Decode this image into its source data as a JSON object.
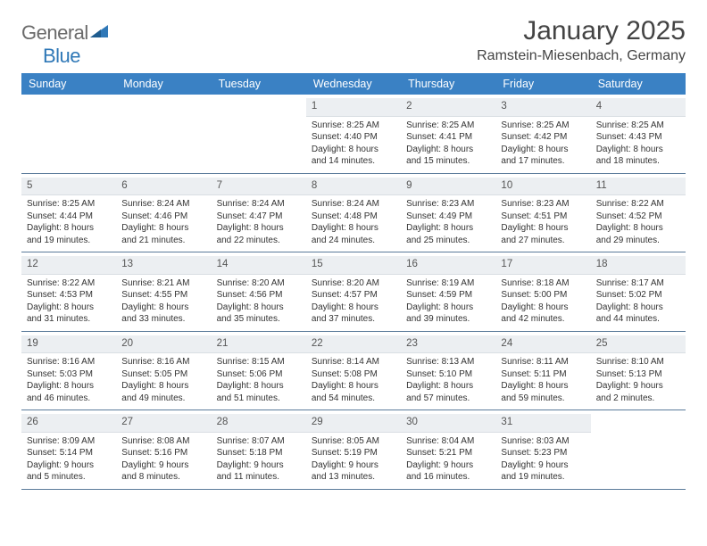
{
  "logo": {
    "word1": "General",
    "word2": "Blue"
  },
  "title": "January 2025",
  "location": "Ramstein-Miesenbach, Germany",
  "colors": {
    "header_bg": "#3a81c4",
    "header_text": "#ffffff",
    "daynum_bg": "#eceff2",
    "rule": "#5a7a9a",
    "body_text": "#333333",
    "logo_gray": "#6a6a6a",
    "logo_blue": "#2f78b7"
  },
  "day_names": [
    "Sunday",
    "Monday",
    "Tuesday",
    "Wednesday",
    "Thursday",
    "Friday",
    "Saturday"
  ],
  "weeks": [
    [
      {
        "n": "",
        "sr": "",
        "ss": "",
        "dl": ""
      },
      {
        "n": "",
        "sr": "",
        "ss": "",
        "dl": ""
      },
      {
        "n": "",
        "sr": "",
        "ss": "",
        "dl": ""
      },
      {
        "n": "1",
        "sr": "Sunrise: 8:25 AM",
        "ss": "Sunset: 4:40 PM",
        "dl": "Daylight: 8 hours and 14 minutes."
      },
      {
        "n": "2",
        "sr": "Sunrise: 8:25 AM",
        "ss": "Sunset: 4:41 PM",
        "dl": "Daylight: 8 hours and 15 minutes."
      },
      {
        "n": "3",
        "sr": "Sunrise: 8:25 AM",
        "ss": "Sunset: 4:42 PM",
        "dl": "Daylight: 8 hours and 17 minutes."
      },
      {
        "n": "4",
        "sr": "Sunrise: 8:25 AM",
        "ss": "Sunset: 4:43 PM",
        "dl": "Daylight: 8 hours and 18 minutes."
      }
    ],
    [
      {
        "n": "5",
        "sr": "Sunrise: 8:25 AM",
        "ss": "Sunset: 4:44 PM",
        "dl": "Daylight: 8 hours and 19 minutes."
      },
      {
        "n": "6",
        "sr": "Sunrise: 8:24 AM",
        "ss": "Sunset: 4:46 PM",
        "dl": "Daylight: 8 hours and 21 minutes."
      },
      {
        "n": "7",
        "sr": "Sunrise: 8:24 AM",
        "ss": "Sunset: 4:47 PM",
        "dl": "Daylight: 8 hours and 22 minutes."
      },
      {
        "n": "8",
        "sr": "Sunrise: 8:24 AM",
        "ss": "Sunset: 4:48 PM",
        "dl": "Daylight: 8 hours and 24 minutes."
      },
      {
        "n": "9",
        "sr": "Sunrise: 8:23 AM",
        "ss": "Sunset: 4:49 PM",
        "dl": "Daylight: 8 hours and 25 minutes."
      },
      {
        "n": "10",
        "sr": "Sunrise: 8:23 AM",
        "ss": "Sunset: 4:51 PM",
        "dl": "Daylight: 8 hours and 27 minutes."
      },
      {
        "n": "11",
        "sr": "Sunrise: 8:22 AM",
        "ss": "Sunset: 4:52 PM",
        "dl": "Daylight: 8 hours and 29 minutes."
      }
    ],
    [
      {
        "n": "12",
        "sr": "Sunrise: 8:22 AM",
        "ss": "Sunset: 4:53 PM",
        "dl": "Daylight: 8 hours and 31 minutes."
      },
      {
        "n": "13",
        "sr": "Sunrise: 8:21 AM",
        "ss": "Sunset: 4:55 PM",
        "dl": "Daylight: 8 hours and 33 minutes."
      },
      {
        "n": "14",
        "sr": "Sunrise: 8:20 AM",
        "ss": "Sunset: 4:56 PM",
        "dl": "Daylight: 8 hours and 35 minutes."
      },
      {
        "n": "15",
        "sr": "Sunrise: 8:20 AM",
        "ss": "Sunset: 4:57 PM",
        "dl": "Daylight: 8 hours and 37 minutes."
      },
      {
        "n": "16",
        "sr": "Sunrise: 8:19 AM",
        "ss": "Sunset: 4:59 PM",
        "dl": "Daylight: 8 hours and 39 minutes."
      },
      {
        "n": "17",
        "sr": "Sunrise: 8:18 AM",
        "ss": "Sunset: 5:00 PM",
        "dl": "Daylight: 8 hours and 42 minutes."
      },
      {
        "n": "18",
        "sr": "Sunrise: 8:17 AM",
        "ss": "Sunset: 5:02 PM",
        "dl": "Daylight: 8 hours and 44 minutes."
      }
    ],
    [
      {
        "n": "19",
        "sr": "Sunrise: 8:16 AM",
        "ss": "Sunset: 5:03 PM",
        "dl": "Daylight: 8 hours and 46 minutes."
      },
      {
        "n": "20",
        "sr": "Sunrise: 8:16 AM",
        "ss": "Sunset: 5:05 PM",
        "dl": "Daylight: 8 hours and 49 minutes."
      },
      {
        "n": "21",
        "sr": "Sunrise: 8:15 AM",
        "ss": "Sunset: 5:06 PM",
        "dl": "Daylight: 8 hours and 51 minutes."
      },
      {
        "n": "22",
        "sr": "Sunrise: 8:14 AM",
        "ss": "Sunset: 5:08 PM",
        "dl": "Daylight: 8 hours and 54 minutes."
      },
      {
        "n": "23",
        "sr": "Sunrise: 8:13 AM",
        "ss": "Sunset: 5:10 PM",
        "dl": "Daylight: 8 hours and 57 minutes."
      },
      {
        "n": "24",
        "sr": "Sunrise: 8:11 AM",
        "ss": "Sunset: 5:11 PM",
        "dl": "Daylight: 8 hours and 59 minutes."
      },
      {
        "n": "25",
        "sr": "Sunrise: 8:10 AM",
        "ss": "Sunset: 5:13 PM",
        "dl": "Daylight: 9 hours and 2 minutes."
      }
    ],
    [
      {
        "n": "26",
        "sr": "Sunrise: 8:09 AM",
        "ss": "Sunset: 5:14 PM",
        "dl": "Daylight: 9 hours and 5 minutes."
      },
      {
        "n": "27",
        "sr": "Sunrise: 8:08 AM",
        "ss": "Sunset: 5:16 PM",
        "dl": "Daylight: 9 hours and 8 minutes."
      },
      {
        "n": "28",
        "sr": "Sunrise: 8:07 AM",
        "ss": "Sunset: 5:18 PM",
        "dl": "Daylight: 9 hours and 11 minutes."
      },
      {
        "n": "29",
        "sr": "Sunrise: 8:05 AM",
        "ss": "Sunset: 5:19 PM",
        "dl": "Daylight: 9 hours and 13 minutes."
      },
      {
        "n": "30",
        "sr": "Sunrise: 8:04 AM",
        "ss": "Sunset: 5:21 PM",
        "dl": "Daylight: 9 hours and 16 minutes."
      },
      {
        "n": "31",
        "sr": "Sunrise: 8:03 AM",
        "ss": "Sunset: 5:23 PM",
        "dl": "Daylight: 9 hours and 19 minutes."
      },
      {
        "n": "",
        "sr": "",
        "ss": "",
        "dl": ""
      }
    ]
  ]
}
